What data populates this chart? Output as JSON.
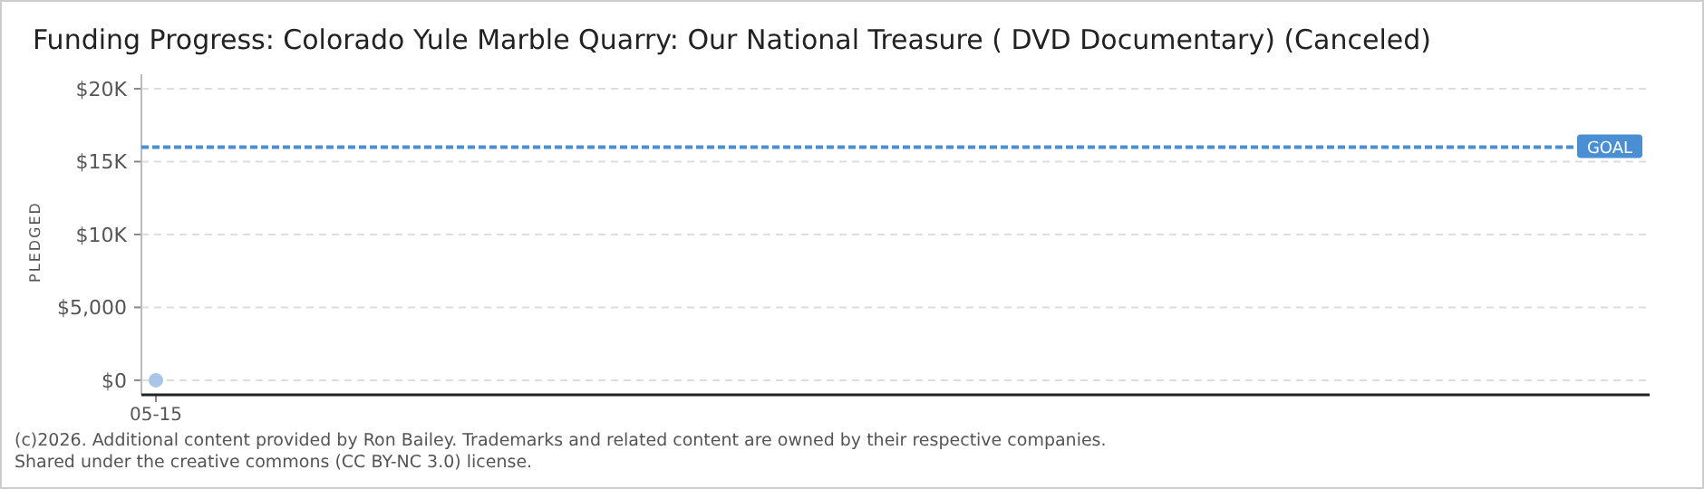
{
  "chart_data": {
    "type": "scatter",
    "title": "Funding Progress: Colorado Yule Marble Quarry: Our National Treasure ( DVD Documentary) (Canceled)",
    "ylabel": "PLEDGED",
    "categories": [
      "05-15",
      null,
      null,
      null,
      null,
      null,
      null,
      null,
      null,
      null,
      null,
      null,
      null,
      null,
      null,
      null,
      null,
      null,
      null,
      null,
      null,
      null,
      null,
      null,
      null,
      null,
      null,
      null,
      null,
      null
    ],
    "series": [
      {
        "color": "#a9c6e8",
        "values": [
          0,
          null,
          null,
          null,
          null,
          null,
          null,
          null,
          null,
          null,
          null,
          null,
          null,
          null,
          null,
          null,
          null,
          null,
          null,
          null,
          null,
          null,
          null,
          null,
          null,
          null,
          null,
          null,
          null,
          null
        ]
      }
    ],
    "ylim": [
      -1000,
      20000
    ],
    "yticks": [
      {
        "value": 0,
        "label": "$0"
      },
      {
        "value": 5000,
        "label": "$5,000"
      },
      {
        "value": 10000,
        "label": "$10K"
      },
      {
        "value": 15000,
        "label": "$15K"
      },
      {
        "value": 20000,
        "label": "$20K"
      }
    ],
    "grid": "y",
    "marker": "circle",
    "ref_lines": [
      {
        "axis": "y",
        "value": 16000,
        "label": "GOAL",
        "color": "#4a8fd4",
        "line_style": "dashed"
      }
    ],
    "annotations": [
      "(c)2026. Additional content provided by Ron Bailey. Trademarks and related content are owned by their respective companies.",
      "Shared under the creative commons (CC BY-NC 3.0) license."
    ]
  }
}
